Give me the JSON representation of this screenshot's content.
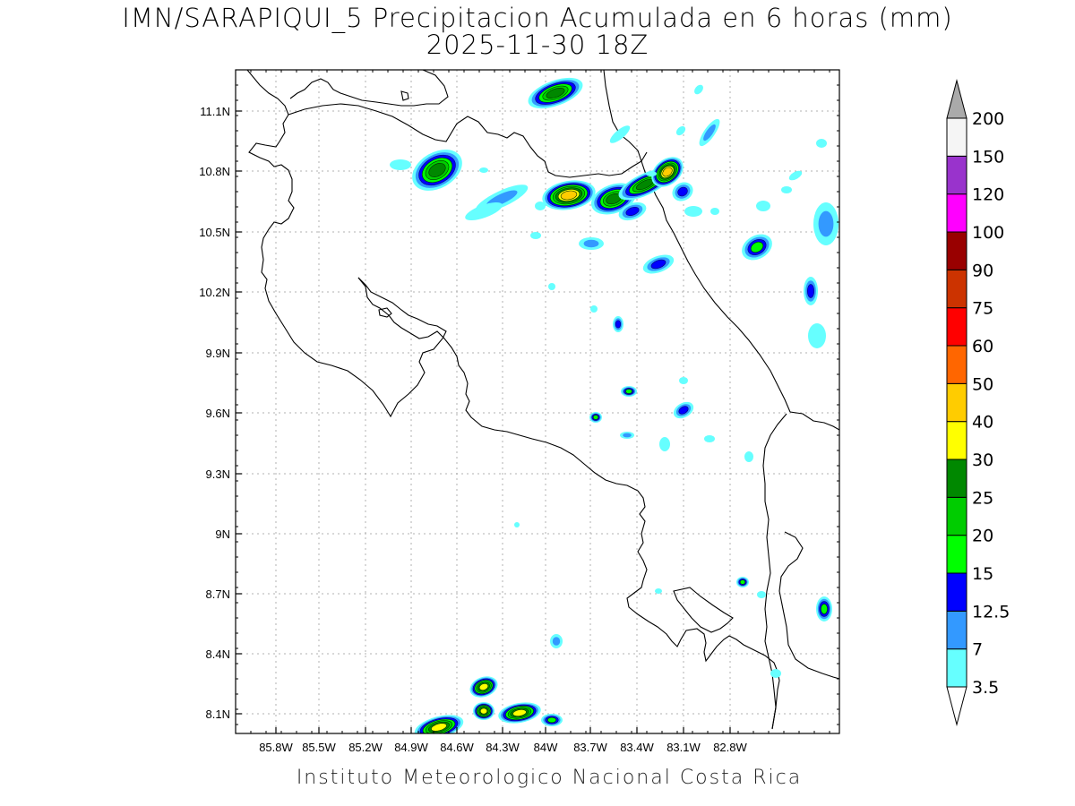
{
  "title": {
    "line1": "IMN/SARAPIQUI_5 Precipitacion Acumulada en 6 horas (mm)",
    "line2": "2025-11-30 18Z"
  },
  "footer": "Instituto Meteorologico Nacional Costa Rica",
  "map": {
    "lon_range": [
      -86.0,
      -83.0
    ],
    "lat_range": [
      8.0,
      11.0
    ],
    "x_ticks": [
      "85.8W",
      "85.5W",
      "85.2W",
      "84.9W",
      "84.6W",
      "84.3W",
      "84W",
      "83.7W",
      "83.4W",
      "83.1W",
      "82.8W"
    ],
    "y_ticks": [
      "8.1N",
      "8.4N",
      "8.7N",
      "9N",
      "9.3N",
      "9.6N",
      "9.9N",
      "10.2N",
      "10.5N",
      "10.8N",
      "11.1N"
    ],
    "grid": true
  },
  "colorbar": {
    "levels": [
      "3.5",
      "7",
      "12.5",
      "15",
      "20",
      "25",
      "30",
      "40",
      "50",
      "60",
      "75",
      "90",
      "100",
      "120",
      "150",
      "200"
    ],
    "colors": [
      "#66ffff",
      "#3399ff",
      "#0000ff",
      "#00ff00",
      "#00cc00",
      "#008800",
      "#ffff00",
      "#ffcc00",
      "#ff6600",
      "#ff0000",
      "#cc3300",
      "#990000",
      "#ff00ff",
      "#9933cc",
      "#f5f5f5",
      "#aaaaaa"
    ]
  },
  "rain_legend_colors": {
    "c1": "#66ffff",
    "c2": "#3399ff",
    "c3": "#0000ff",
    "c4": "#00ff00",
    "c5": "#00cc00",
    "c6": "#008800",
    "c7": "#ffff00",
    "c8": "#ffcc00"
  }
}
